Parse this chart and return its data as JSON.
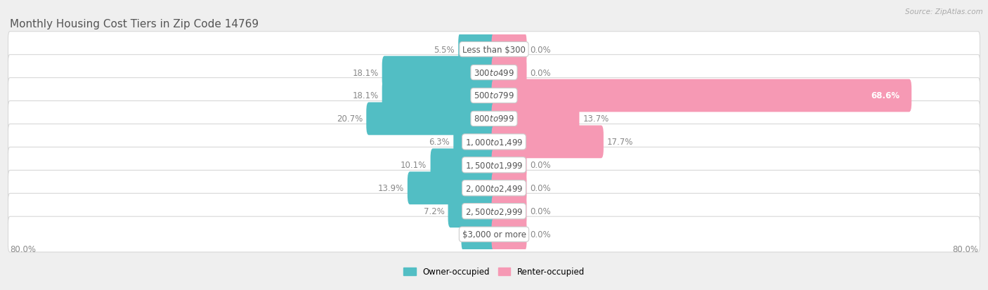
{
  "title": "Monthly Housing Cost Tiers in Zip Code 14769",
  "source": "Source: ZipAtlas.com",
  "categories": [
    "Less than $300",
    "$300 to $499",
    "$500 to $799",
    "$800 to $999",
    "$1,000 to $1,499",
    "$1,500 to $1,999",
    "$2,000 to $2,499",
    "$2,500 to $2,999",
    "$3,000 or more"
  ],
  "owner_values": [
    5.5,
    18.1,
    18.1,
    20.7,
    6.3,
    10.1,
    13.9,
    7.2,
    0.0
  ],
  "renter_values": [
    0.0,
    0.0,
    68.6,
    13.7,
    17.7,
    0.0,
    0.0,
    0.0,
    0.0
  ],
  "owner_color": "#52bec4",
  "renter_color": "#f699b4",
  "axis_limit": 80.0,
  "background_color": "#efefef",
  "row_bg_color": "#ffffff",
  "title_fontsize": 11,
  "label_fontsize": 8.5,
  "category_fontsize": 8.5,
  "renter_0_stub": 5.0,
  "label_color": "#888888",
  "cat_label_color": "#555555"
}
